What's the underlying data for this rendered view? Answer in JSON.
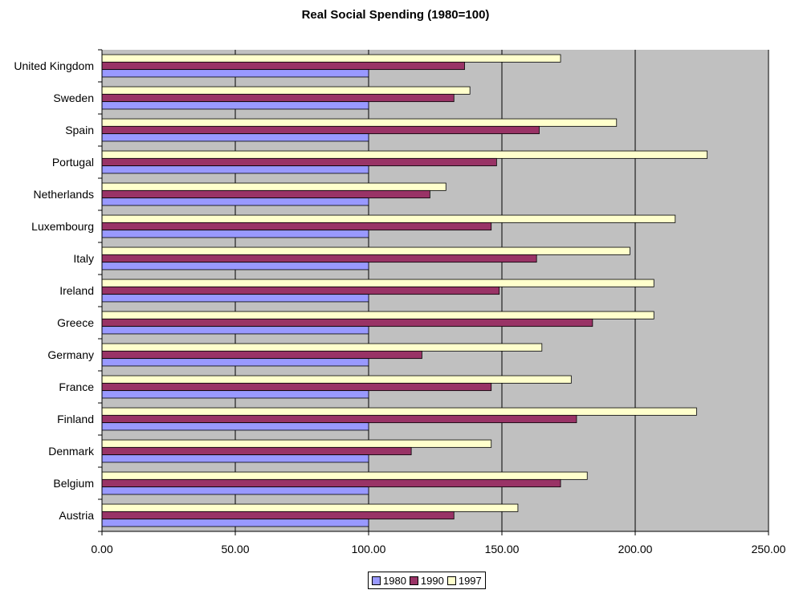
{
  "chart_data": {
    "type": "bar",
    "orientation": "horizontal",
    "title": "Real Social Spending (1980=100)",
    "xlabel": "",
    "ylabel": "",
    "xlim": [
      0,
      250
    ],
    "xticks": [
      "0.00",
      "50.00",
      "100.00",
      "150.00",
      "200.00",
      "250.00"
    ],
    "grid": true,
    "legend_position": "bottom",
    "plot_background": "#c0c0c0",
    "categories": [
      "Austria",
      "Belgium",
      "Denmark",
      "Finland",
      "France",
      "Germany",
      "Greece",
      "Ireland",
      "Italy",
      "Luxembourg",
      "Netherlands",
      "Portugal",
      "Spain",
      "Sweden",
      "United Kingdom"
    ],
    "series": [
      {
        "name": "1980",
        "color": "#9999ff",
        "values": [
          100,
          100,
          100,
          100,
          100,
          100,
          100,
          100,
          100,
          100,
          100,
          100,
          100,
          100,
          100
        ]
      },
      {
        "name": "1990",
        "color": "#993366",
        "values": [
          132,
          172,
          116,
          178,
          146,
          120,
          184,
          149,
          163,
          146,
          123,
          148,
          164,
          132,
          136
        ]
      },
      {
        "name": "1997",
        "color": "#ffffcc",
        "values": [
          156,
          182,
          146,
          223,
          176,
          165,
          207,
          207,
          198,
          215,
          129,
          227,
          193,
          138,
          172
        ]
      }
    ]
  }
}
